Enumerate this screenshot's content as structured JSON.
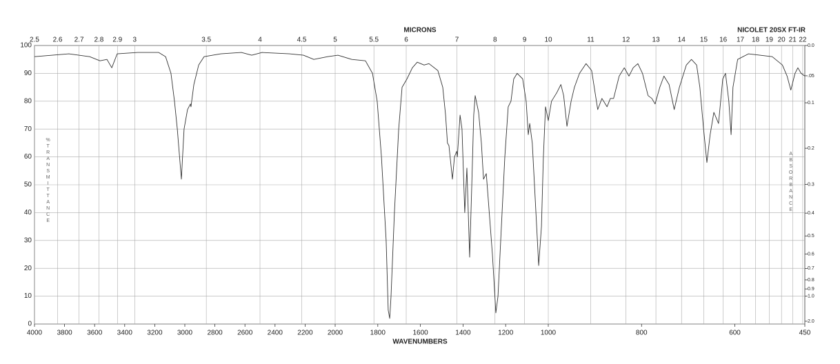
{
  "chart_data": {
    "type": "line",
    "title": "NICOLET 20SX FT-IR",
    "x_label": "WAVENUMBERS",
    "x2_label": "MICRONS",
    "y_label": "%TRANSMITTANCE",
    "y2_label": "ABSORBANCE",
    "color": "#333333",
    "grid": true,
    "xlim": [
      4000,
      450
    ],
    "xticks": [
      4000,
      3800,
      3600,
      3400,
      3200,
      3000,
      2800,
      2600,
      2400,
      2200,
      2000,
      1800,
      1600,
      1400,
      1200,
      1000,
      800,
      600,
      450
    ],
    "x2ticks": [
      2.5,
      2.6,
      2.7,
      2.8,
      2.9,
      3,
      3.5,
      4,
      4.5,
      5,
      5.5,
      6,
      7,
      8,
      9,
      10,
      11,
      12,
      13,
      14,
      15,
      16,
      17,
      18,
      19,
      20,
      21,
      22
    ],
    "ylim": [
      0,
      100
    ],
    "yticks": [
      0,
      10,
      20,
      30,
      40,
      50,
      60,
      70,
      80,
      90,
      100
    ],
    "y2ticks": [
      {
        "value": 0,
        "label": "0.0"
      },
      {
        "value": 0.05,
        "label": ".05"
      },
      0.1,
      0.2,
      0.3,
      0.4,
      0.5,
      0.6,
      0.7,
      0.8,
      0.9,
      {
        "value": 1,
        "label": "1.0"
      },
      {
        "value": 2,
        "label": "2.0"
      }
    ],
    "x": [
      4000,
      3771,
      3633,
      3564,
      3518,
      3486,
      3450,
      3312,
      3174,
      3128,
      3092,
      3069,
      3050,
      3023,
      3005,
      2982,
      2963,
      2959,
      2940,
      2908,
      2872,
      2761,
      2624,
      2555,
      2486,
      2303,
      2211,
      2142,
      2050,
      1987,
      1922,
      1858,
      1825,
      1803,
      1783,
      1761,
      1751,
      1744,
      1738,
      1722,
      1702,
      1686,
      1663,
      1638,
      1615,
      1583,
      1560,
      1518,
      1495,
      1482,
      1473,
      1466,
      1450,
      1440,
      1430,
      1427,
      1414,
      1405,
      1392,
      1382,
      1369,
      1359,
      1350,
      1343,
      1327,
      1314,
      1304,
      1291,
      1282,
      1262,
      1246,
      1236,
      1220,
      1204,
      1188,
      1175,
      1162,
      1146,
      1120,
      1104,
      1094,
      1087,
      1075,
      1058,
      1045,
      1032,
      1023,
      1013,
      1000,
      993,
      982,
      973,
      967,
      960,
      951,
      944,
      933,
      919,
      907,
      894,
      885,
      874,
      867,
      860,
      848,
      837,
      827,
      818,
      808,
      798,
      786,
      778,
      771,
      761,
      752,
      741,
      730,
      719,
      704,
      693,
      682,
      675,
      667,
      660,
      653,
      645,
      635,
      626,
      620,
      613,
      608,
      604,
      594,
      571,
      520,
      498,
      488,
      480,
      471,
      465,
      458,
      450
    ],
    "values": [
      96,
      97,
      96,
      94.5,
      95,
      92,
      97,
      97.5,
      97.5,
      96,
      90,
      80,
      70,
      52,
      70,
      77,
      79,
      78,
      86,
      93,
      96,
      97,
      97.5,
      96.5,
      97.5,
      97,
      96.5,
      95,
      96,
      96.5,
      95,
      94.5,
      90,
      80,
      60,
      30,
      5,
      2,
      10,
      40,
      70,
      85,
      88,
      92,
      94,
      93,
      93.5,
      91,
      85,
      75,
      65,
      64,
      52,
      60,
      62,
      60,
      75,
      70,
      40,
      56,
      24,
      50,
      75,
      82,
      76,
      65,
      52,
      54,
      45,
      25,
      4,
      10,
      35,
      60,
      78,
      80,
      88,
      90,
      88,
      80,
      68,
      72,
      65,
      40,
      21,
      35,
      60,
      78,
      73,
      80,
      83,
      86,
      82,
      71,
      80,
      85,
      90,
      93.5,
      91,
      77,
      81,
      78,
      81,
      81,
      89,
      92,
      89,
      92,
      93.5,
      90,
      82,
      81,
      79,
      85,
      89,
      86,
      77,
      85,
      93,
      95,
      93,
      85,
      70,
      58,
      68,
      76,
      72,
      88,
      90,
      80,
      68,
      85,
      95,
      97,
      96,
      93,
      89,
      84,
      90,
      92,
      90,
      89
    ]
  }
}
